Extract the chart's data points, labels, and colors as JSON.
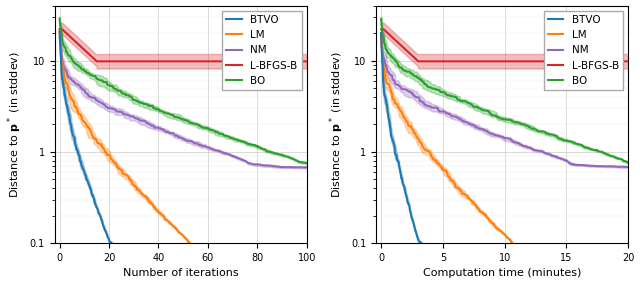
{
  "colors": {
    "BTVO": "#1f77b4",
    "LM": "#ff7f0e",
    "BO": "#2ca02c",
    "L-BFGS-B": "#d62728",
    "NM": "#9467bd"
  },
  "labels": [
    "BTVO",
    "LM",
    "BO",
    "L-BFGS-B",
    "NM"
  ],
  "ylabel": "Distance to $\\mathbf{p}^*$ (in stddev)",
  "xlabel1": "Number of iterations",
  "xlabel2": "Computation time (minutes)",
  "xlim1": [
    -2,
    100
  ],
  "xlim2": [
    -0.4,
    20
  ],
  "ylim": [
    0.1,
    40
  ],
  "xticks1": [
    0,
    20,
    40,
    60,
    80,
    100
  ],
  "xticks2": [
    0,
    5,
    10,
    15,
    20
  ],
  "background_color": "#ffffff",
  "alpha_fill": 0.3,
  "linewidth": 1.5
}
